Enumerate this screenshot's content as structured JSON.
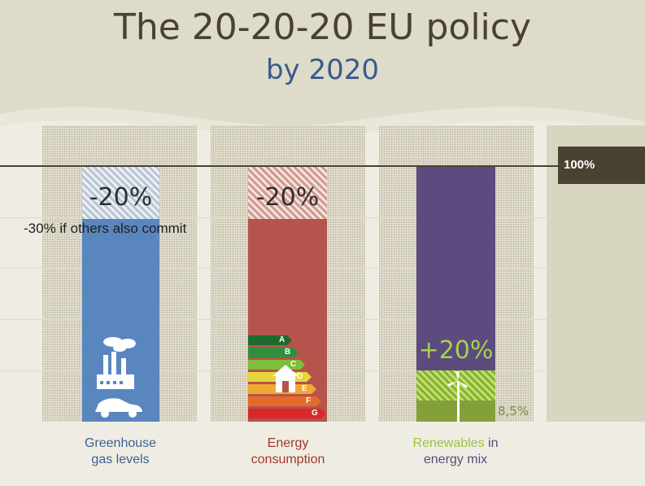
{
  "title": "The 20-20-20 EU policy",
  "subtitle": "by 2020",
  "reference": {
    "label": "100%",
    "value": 100
  },
  "chart_data": {
    "type": "bar",
    "title": "The 20-20-20 EU policy",
    "subtitle": "by 2020",
    "categories": [
      "Greenhouse gas levels",
      "Energy consumption",
      "Renewables in energy mix"
    ],
    "baseline_percent": 100,
    "series": [
      {
        "category": "Greenhouse gas levels",
        "change_label": "-20%",
        "change": -20,
        "note": "-30% if others also commit",
        "color": "#5a86bf"
      },
      {
        "category": "Energy consumption",
        "change_label": "-20%",
        "change": -20,
        "color": "#b5534c"
      },
      {
        "category": "Renewables in energy mix",
        "target_label": "+20%",
        "target": 20,
        "current_label": "8,5%",
        "current": 8.5,
        "color": "#5d4a7f"
      }
    ]
  },
  "bars": {
    "ghg": {
      "change_label": "-20%",
      "note": "-30% if others also commit"
    },
    "energy": {
      "change_label": "-20%",
      "energy_classes": [
        "A",
        "B",
        "C",
        "D",
        "E",
        "F",
        "G"
      ]
    },
    "renewables": {
      "target_label": "+20%",
      "current_label": "8,5%"
    }
  },
  "categories": {
    "ghg": {
      "line1": "Greenhouse",
      "line2": "gas levels"
    },
    "energy": {
      "line1": "Energy",
      "line2": "consumption"
    },
    "renewables": {
      "highlight": "Renewables",
      "line1_rest": " in",
      "line2": "energy mix"
    }
  },
  "colors": {
    "ghg": "#5a86bf",
    "energy": "#b5534c",
    "renewables": "#5d4a7f",
    "renewables_current": "#84a03a",
    "reference": "#4a4231"
  }
}
